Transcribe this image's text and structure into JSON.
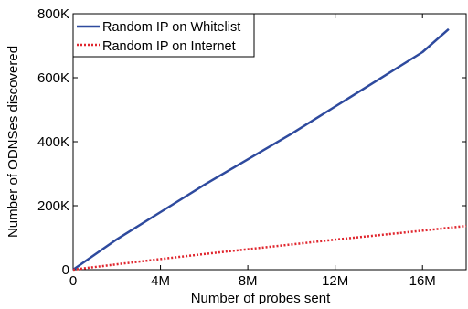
{
  "chart_data": {
    "type": "line",
    "xlabel": "Number of probes sent",
    "ylabel": "Number of ODNSes discovered",
    "xlim": [
      0,
      18000000
    ],
    "ylim": [
      0,
      800000
    ],
    "x_ticks": [
      0,
      4000000,
      8000000,
      12000000,
      16000000
    ],
    "x_tick_labels": [
      "0",
      "4M",
      "8M",
      "12M",
      "16M"
    ],
    "y_ticks": [
      0,
      200000,
      400000,
      600000,
      800000
    ],
    "y_tick_labels": [
      "0",
      "200K",
      "400K",
      "600K",
      "800K"
    ],
    "grid": false,
    "legend_position": "top-left",
    "series": [
      {
        "name": "Random IP on Whitelist",
        "color": "#2e4a9e",
        "line_style": "solid",
        "x": [
          0,
          2000000,
          4000000,
          6000000,
          8000000,
          10000000,
          12000000,
          14000000,
          16000000,
          17200000
        ],
        "y": [
          0,
          95000,
          180000,
          265000,
          345000,
          425000,
          510000,
          595000,
          680000,
          752000
        ]
      },
      {
        "name": "Random IP on Internet",
        "color": "#e0262e",
        "line_style": "dotted",
        "x": [
          0,
          2000000,
          4000000,
          6000000,
          8000000,
          10000000,
          12000000,
          14000000,
          16000000,
          18000000
        ],
        "y": [
          0,
          17000,
          33000,
          49000,
          64000,
          79000,
          94000,
          108000,
          122000,
          137000
        ]
      }
    ]
  }
}
